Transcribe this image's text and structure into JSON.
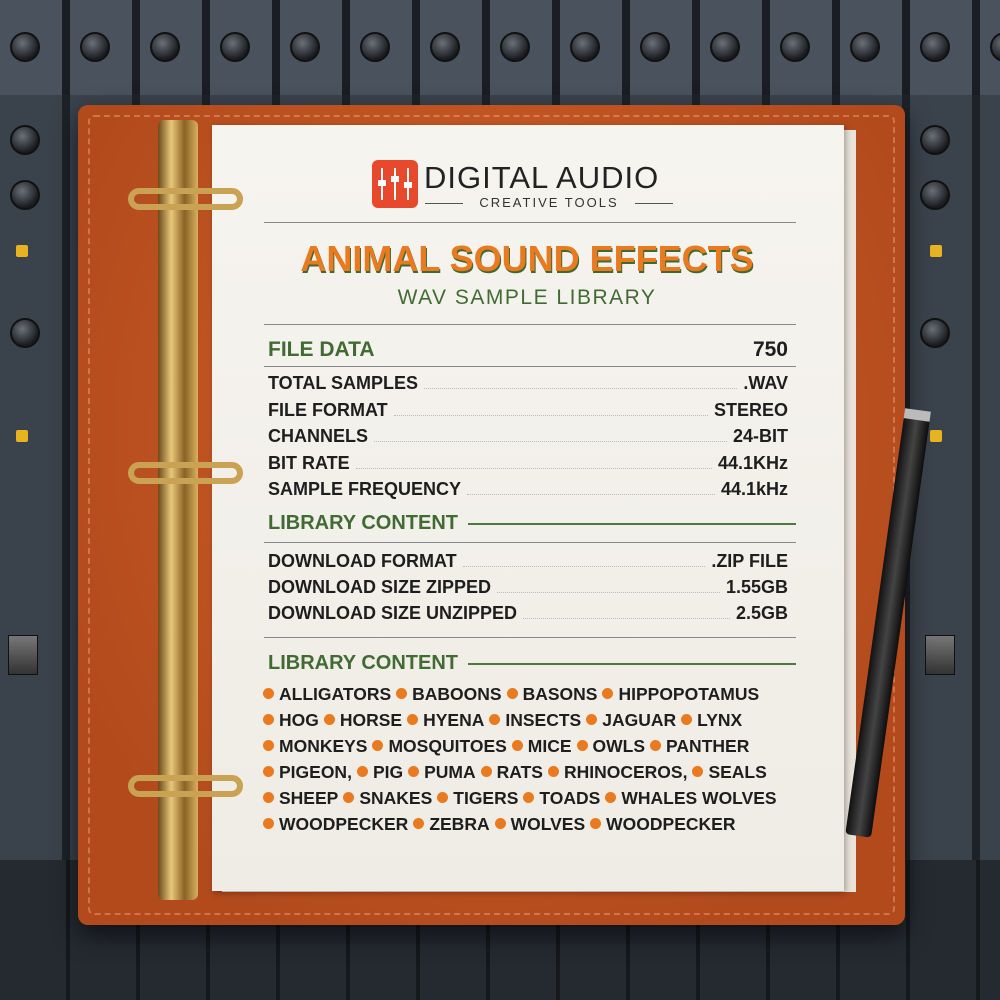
{
  "brand": {
    "name": "DIGITAL AUDIO",
    "tagline": "CREATIVE TOOLS",
    "logo_icon": "mixer-faders-icon",
    "logo_color": "#e8482b"
  },
  "title": "ANIMAL SOUND EFFECTS",
  "subtitle": "WAV SAMPLE LIBRARY",
  "file_data": {
    "heading": "FILE DATA",
    "heading_value": "750",
    "rows": [
      {
        "label": "TOTAL SAMPLES",
        "value": ".WAV"
      },
      {
        "label": "FILE FORMAT",
        "value": "STEREO"
      },
      {
        "label": "CHANNELS",
        "value": "24-BIT"
      },
      {
        "label": "BIT RATE",
        "value": "44.1KHz"
      },
      {
        "label": "SAMPLE FREQUENCY",
        "value": "44.1kHz"
      }
    ]
  },
  "download": {
    "heading": "LIBRARY CONTENT",
    "rows": [
      {
        "label": "DOWNLOAD FORMAT",
        "value": ".ZIP FILE"
      },
      {
        "label": "DOWNLOAD SIZE ZIPPED",
        "value": "1.55GB"
      },
      {
        "label": "DOWNLOAD SIZE UNZIPPED",
        "value": "2.5GB"
      }
    ]
  },
  "content": {
    "heading": "LIBRARY CONTENT",
    "rows": [
      [
        "ALLIGATORS",
        "BABOONS",
        "BASONS",
        "HIPPOPOTAMUS"
      ],
      [
        "HOG",
        "HORSE",
        "HYENA",
        "INSECTS",
        "JAGUAR",
        "LYNX"
      ],
      [
        "MONKEYS",
        "MOSQUITOES",
        "MICE",
        "OWLS",
        "PANTHER"
      ],
      [
        "PIGEON,",
        "PIG",
        "PUMA",
        "RATS",
        "RHINOCEROS,",
        "SEALS"
      ],
      [
        "SHEEP",
        "SNAKES",
        "TIGERS",
        "TOADS",
        "WHALES WOLVES"
      ],
      [
        "WOODPECKER",
        "ZEBRA",
        "WOLVES",
        "WOODPECKER"
      ]
    ]
  },
  "colors": {
    "accent_orange": "#ea7a1f",
    "accent_green": "#426b34",
    "binder": "#c9561f"
  }
}
